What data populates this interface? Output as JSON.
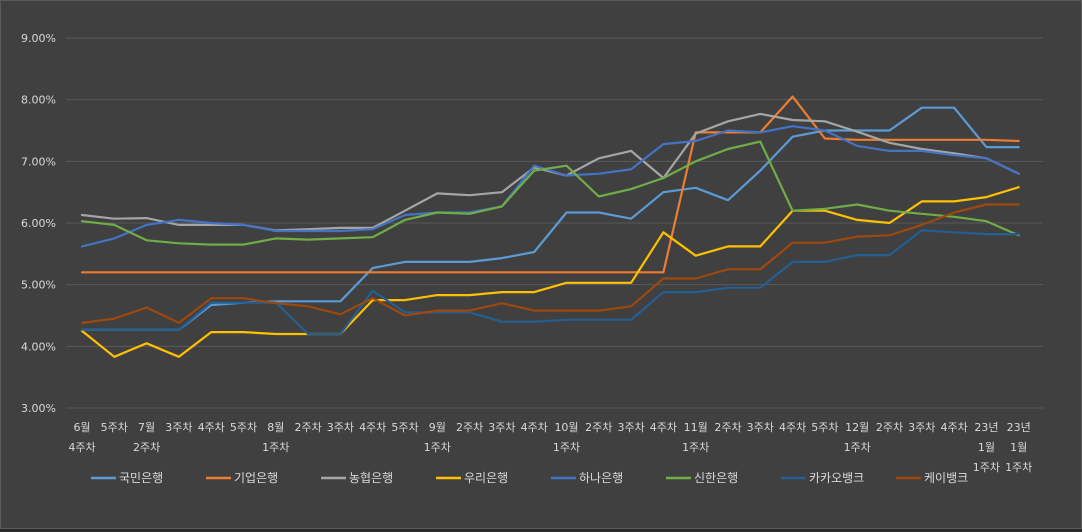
{
  "chart_data": {
    "type": "line",
    "title": "",
    "xlabel": "",
    "ylabel": "",
    "ylim": [
      3.0,
      9.0
    ],
    "y_ticks": [
      "3.00%",
      "4.00%",
      "5.00%",
      "6.00%",
      "7.00%",
      "8.00%",
      "9.00%"
    ],
    "grid": "horizontal",
    "legend_position": "bottom",
    "categories": [
      "6월 4주차",
      "",
      "7월 2주차",
      "",
      "",
      "",
      "8월 1주차",
      "",
      "",
      "",
      "",
      "9월 1주차",
      "",
      "",
      "",
      "10월 1주차",
      "",
      "",
      "",
      "11월 1주차",
      "",
      "",
      "",
      "",
      "12월 1주차",
      "",
      "",
      "",
      "23년 1월 1주차",
      "23년 1월 1주차"
    ],
    "x_tick_labels": [
      {
        "lines": [
          "6월",
          "4주차"
        ]
      },
      {
        "lines": [
          "5주차"
        ]
      },
      {
        "lines": [
          "7월",
          "2주차"
        ]
      },
      {
        "lines": [
          "3주차"
        ]
      },
      {
        "lines": [
          "4주차"
        ]
      },
      {
        "lines": [
          "5주차"
        ]
      },
      {
        "lines": [
          "8월",
          "1주차"
        ]
      },
      {
        "lines": [
          "2주차"
        ]
      },
      {
        "lines": [
          "3주차"
        ]
      },
      {
        "lines": [
          "4주차"
        ]
      },
      {
        "lines": [
          "5주차"
        ]
      },
      {
        "lines": [
          "9월",
          "1주차"
        ]
      },
      {
        "lines": [
          "2주차"
        ]
      },
      {
        "lines": [
          "3주차"
        ]
      },
      {
        "lines": [
          "4주차"
        ]
      },
      {
        "lines": [
          "10월",
          "1주차"
        ]
      },
      {
        "lines": [
          "2주차"
        ]
      },
      {
        "lines": [
          "3주차"
        ]
      },
      {
        "lines": [
          "4주차"
        ]
      },
      {
        "lines": [
          "11월",
          "1주차"
        ]
      },
      {
        "lines": [
          "2주차"
        ]
      },
      {
        "lines": [
          "3주차"
        ]
      },
      {
        "lines": [
          "4주차"
        ]
      },
      {
        "lines": [
          "5주차"
        ]
      },
      {
        "lines": [
          "12월",
          "1주차"
        ]
      },
      {
        "lines": [
          "2주차"
        ]
      },
      {
        "lines": [
          "3주차"
        ]
      },
      {
        "lines": [
          "4주차"
        ]
      },
      {
        "lines": [
          "23년",
          "1월",
          "1주차"
        ]
      },
      {
        "lines": [
          "23년",
          "1월",
          "1주차"
        ]
      }
    ],
    "series": [
      {
        "name": "국민은행",
        "color": "#5b9bd5",
        "values": [
          4.27,
          4.27,
          4.27,
          4.27,
          4.67,
          4.71,
          4.73,
          4.73,
          4.73,
          5.27,
          5.37,
          5.37,
          5.37,
          5.43,
          5.53,
          6.17,
          6.17,
          6.07,
          6.5,
          6.57,
          6.37,
          6.85,
          7.4,
          7.5,
          7.5,
          7.5,
          7.87,
          7.87,
          7.23,
          7.23
        ]
      },
      {
        "name": "기업은행",
        "color": "#ed7d31",
        "values": [
          5.2,
          5.2,
          5.2,
          5.2,
          5.2,
          5.2,
          5.2,
          5.2,
          5.2,
          5.2,
          5.2,
          5.2,
          5.2,
          5.2,
          5.2,
          5.2,
          5.2,
          5.2,
          5.2,
          7.47,
          7.47,
          7.47,
          8.05,
          7.37,
          7.35,
          7.35,
          7.35,
          7.35,
          7.35,
          7.33
        ]
      },
      {
        "name": "농협은행",
        "color": "#a5a5a5",
        "values": [
          6.13,
          6.07,
          6.08,
          5.97,
          5.97,
          5.97,
          5.88,
          5.9,
          5.92,
          5.92,
          6.2,
          6.48,
          6.45,
          6.5,
          6.9,
          6.77,
          7.05,
          7.17,
          6.73,
          7.45,
          7.65,
          7.77,
          7.67,
          7.65,
          7.48,
          7.3,
          7.2,
          7.13,
          7.05,
          6.8
        ]
      },
      {
        "name": "우리은행",
        "color": "#ffc000",
        "values": [
          4.25,
          3.83,
          4.05,
          3.83,
          4.23,
          4.23,
          4.2,
          4.2,
          4.2,
          4.75,
          4.75,
          4.83,
          4.83,
          4.88,
          4.88,
          5.03,
          5.03,
          5.03,
          5.85,
          5.47,
          5.62,
          5.62,
          6.2,
          6.2,
          6.05,
          6.0,
          6.35,
          6.35,
          6.42,
          6.58
        ]
      },
      {
        "name": "하나은행",
        "color": "#4472c4",
        "values": [
          5.62,
          5.75,
          5.97,
          6.05,
          6.0,
          5.97,
          5.87,
          5.87,
          5.87,
          5.9,
          6.13,
          6.17,
          6.17,
          6.27,
          6.93,
          6.77,
          6.8,
          6.87,
          7.28,
          7.33,
          7.5,
          7.47,
          7.57,
          7.5,
          7.25,
          7.17,
          7.17,
          7.1,
          7.05,
          6.8
        ]
      },
      {
        "name": "신한은행",
        "color": "#70ad47",
        "values": [
          6.03,
          5.97,
          5.72,
          5.67,
          5.65,
          5.65,
          5.75,
          5.73,
          5.75,
          5.77,
          6.05,
          6.17,
          6.15,
          6.27,
          6.85,
          6.93,
          6.43,
          6.55,
          6.73,
          7.0,
          7.2,
          7.32,
          6.2,
          6.23,
          6.3,
          6.2,
          6.15,
          6.1,
          6.03,
          5.8
        ]
      },
      {
        "name": "카카오뱅크",
        "color": "#255e91",
        "values": [
          4.27,
          4.27,
          4.27,
          4.27,
          4.71,
          4.71,
          4.71,
          4.2,
          4.2,
          4.9,
          4.55,
          4.55,
          4.55,
          4.4,
          4.4,
          4.43,
          4.43,
          4.43,
          4.88,
          4.88,
          4.95,
          4.95,
          5.37,
          5.37,
          5.48,
          5.48,
          5.88,
          5.85,
          5.82,
          5.82
        ]
      },
      {
        "name": "케이뱅크",
        "color": "#9e480e",
        "values": [
          4.38,
          4.45,
          4.63,
          4.38,
          4.78,
          4.78,
          4.7,
          4.65,
          4.52,
          4.78,
          4.5,
          4.58,
          4.58,
          4.7,
          4.58,
          4.58,
          4.58,
          4.65,
          5.1,
          5.1,
          5.25,
          5.25,
          5.68,
          5.68,
          5.78,
          5.8,
          5.97,
          6.17,
          6.3,
          6.3
        ]
      }
    ]
  }
}
